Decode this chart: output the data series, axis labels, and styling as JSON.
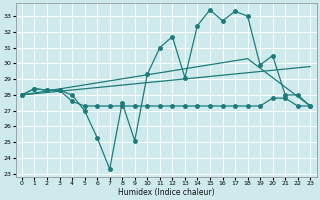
{
  "xlabel": "Humidex (Indice chaleur)",
  "bg_color": "#ceeaed",
  "grid_color": "#ffffff",
  "line_color": "#1e7b7b",
  "xlim": [
    -0.5,
    23.5
  ],
  "ylim": [
    22.8,
    33.8
  ],
  "yticks": [
    23,
    24,
    25,
    26,
    27,
    28,
    29,
    30,
    31,
    32,
    33
  ],
  "xticks": [
    0,
    1,
    2,
    3,
    4,
    5,
    6,
    7,
    8,
    9,
    10,
    11,
    12,
    13,
    14,
    15,
    16,
    17,
    18,
    19,
    20,
    21,
    22,
    23
  ],
  "series_wavy_x": [
    0,
    1,
    2,
    3,
    4,
    5,
    6,
    7,
    8,
    9,
    10,
    11,
    12,
    13,
    14,
    15,
    16,
    17,
    18,
    19,
    20,
    21,
    22,
    23
  ],
  "series_wavy_y": [
    28.0,
    28.4,
    28.3,
    28.3,
    28.0,
    27.0,
    25.3,
    23.3,
    27.5,
    25.1,
    29.3,
    31.0,
    31.7,
    29.1,
    32.4,
    33.4,
    32.7,
    33.3,
    33.0,
    29.9,
    30.5,
    28.0,
    28.0,
    27.3
  ],
  "series_flat_x": [
    0,
    1,
    2,
    3,
    4,
    5,
    6,
    7,
    8,
    9,
    10,
    11,
    12,
    13,
    14,
    15,
    16,
    17,
    18,
    19,
    20,
    21,
    22,
    23
  ],
  "series_flat_y": [
    28.0,
    28.4,
    28.3,
    28.3,
    27.6,
    27.3,
    27.3,
    27.3,
    27.3,
    27.3,
    27.3,
    27.3,
    27.3,
    27.3,
    27.3,
    27.3,
    27.3,
    27.3,
    27.3,
    27.3,
    27.8,
    27.8,
    27.3,
    27.3
  ],
  "series_trend_x": [
    0,
    23
  ],
  "series_trend_y": [
    28.0,
    29.8
  ],
  "series_trend2_x": [
    0,
    18,
    23
  ],
  "series_trend2_y": [
    28.0,
    30.3,
    27.3
  ]
}
